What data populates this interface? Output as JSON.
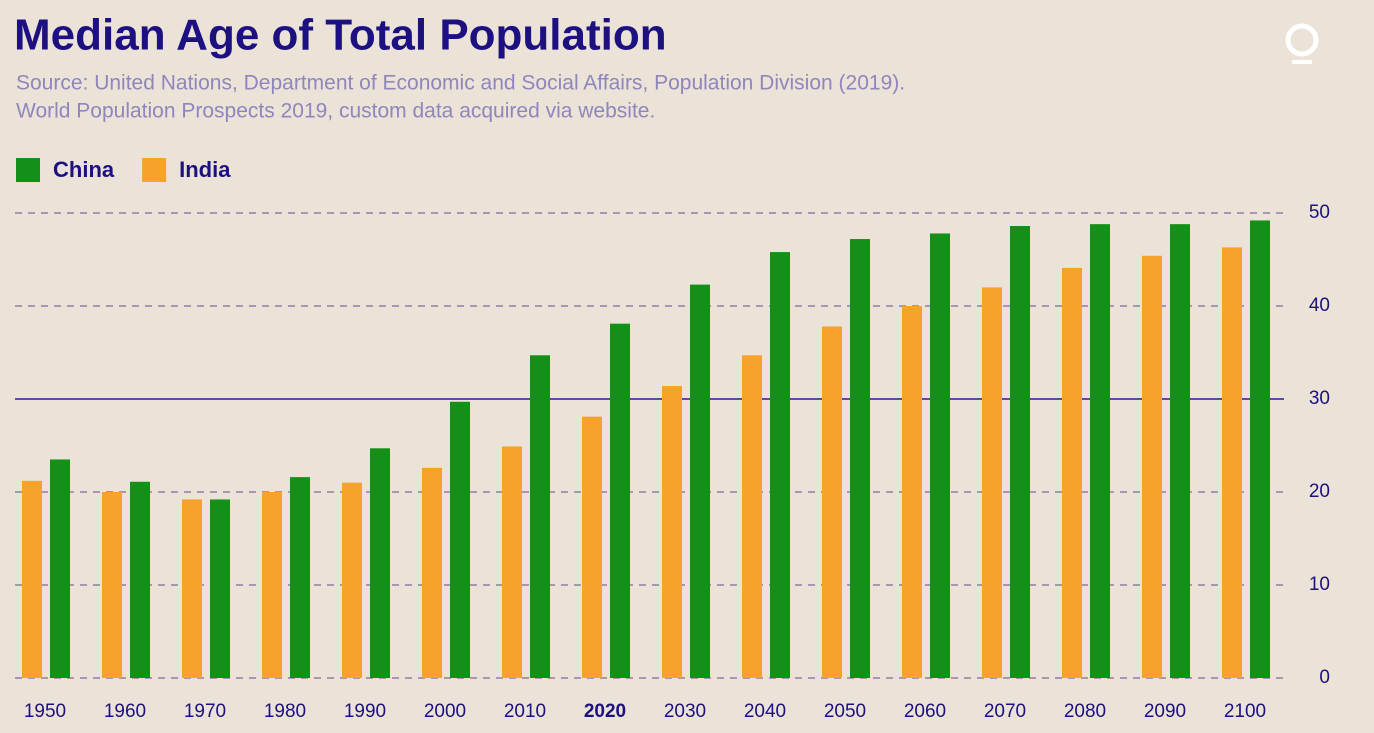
{
  "chart_data": {
    "type": "bar",
    "title": "Median Age of Total Population",
    "subtitle": [
      "Source: United Nations, Department of Economic and Social Affairs, Population Division (2019).",
      "World Population Prospects 2019, custom data acquired via website."
    ],
    "categories": [
      "1950",
      "1960",
      "1970",
      "1980",
      "1990",
      "2000",
      "2010",
      "2020",
      "2030",
      "2040",
      "2050",
      "2060",
      "2070",
      "2080",
      "2090",
      "2100"
    ],
    "series": [
      {
        "name": "India",
        "color": "#f7a22a",
        "values": [
          21.2,
          20.0,
          19.2,
          20.0,
          21.0,
          22.6,
          24.9,
          28.1,
          31.4,
          34.7,
          37.8,
          40.0,
          42.0,
          44.1,
          45.4,
          46.3
        ]
      },
      {
        "name": "China",
        "color": "#149018",
        "values": [
          23.5,
          21.1,
          19.2,
          21.6,
          24.7,
          29.7,
          34.7,
          38.1,
          42.3,
          45.8,
          47.2,
          47.8,
          48.6,
          48.8,
          48.8,
          49.2
        ]
      }
    ],
    "legend_order": [
      1,
      0
    ],
    "legend": "top-left",
    "ylim": [
      0,
      50
    ],
    "yticks": [
      0,
      10,
      20,
      30,
      40,
      50
    ],
    "grid": true,
    "reference_line": 30,
    "bold_category_index": 7
  }
}
